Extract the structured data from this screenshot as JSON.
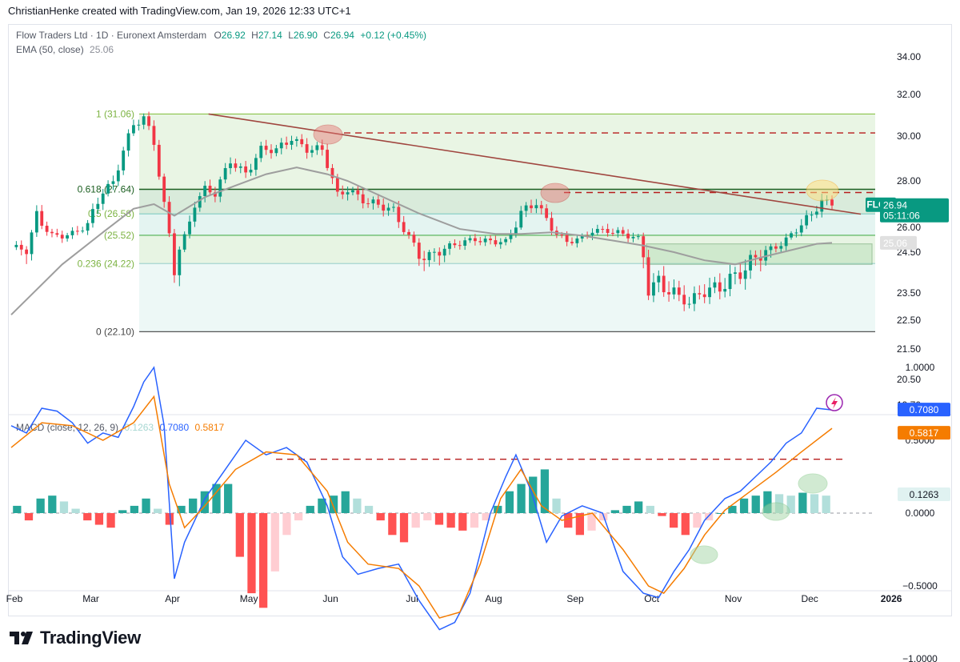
{
  "header": {
    "text": "ChristianHenke created with TradingView.com, Jan 19, 2026 12:33 UTC+1"
  },
  "legend": {
    "title": "Flow Traders Ltd · 1D · Euronext Amsterdam",
    "o_label": "O",
    "o": "26.92",
    "h_label": "H",
    "h": "27.14",
    "l_label": "L",
    "l": "26.90",
    "c_label": "C",
    "c": "26.94",
    "change": "+0.12 (+0.45%)",
    "ema_label": "EMA (50, close)",
    "ema_value": "25.06",
    "macd_label": "MACD (close, 12, 26, 9)",
    "macd_hist": "0.1263",
    "macd_line": "0.7080",
    "macd_signal": "0.5817"
  },
  "badges": {
    "symbol": "FLOW",
    "price": "26.94",
    "countdown": "05:11:06",
    "ema": "25.06",
    "macd_line": "0.7080",
    "macd_signal": "0.5817",
    "macd_hist": "0.1263"
  },
  "footer": {
    "brand": "TradingView"
  },
  "colors": {
    "up": "#089981",
    "down": "#f23645",
    "ema": "#9e9e9e",
    "macd": "#2962ff",
    "signal": "#f57c00",
    "trend": "#a0463f"
  },
  "chart_data": [
    {
      "type": "candlestick",
      "title": "Flow Traders Ltd · 1D · Euronext Amsterdam",
      "y_ticks": [
        34.0,
        32.0,
        30.0,
        28.0,
        26.0,
        24.5,
        23.5,
        22.5,
        21.5,
        20.5,
        19.7
      ],
      "y_tick_labels": [
        "34.00",
        "32.00",
        "30.00",
        "28.00",
        "26.00",
        "24.50",
        "23.50",
        "22.50",
        "21.50",
        "20.50",
        "19.70"
      ],
      "x_ticks": [
        "Feb",
        "Mar",
        "Apr",
        "May",
        "Jun",
        "Jul",
        "Aug",
        "Sep",
        "Oct",
        "Nov",
        "Dec",
        "2026",
        "Feb"
      ],
      "close_path": [
        [
          0,
          24.8
        ],
        [
          3,
          24.5
        ],
        [
          5,
          26.5
        ],
        [
          8,
          25.6
        ],
        [
          12,
          25.6
        ],
        [
          15,
          26.0
        ],
        [
          18,
          27.6
        ],
        [
          20,
          28.0
        ],
        [
          22,
          29.5
        ],
        [
          24,
          30.5
        ],
        [
          26,
          30.8
        ],
        [
          28,
          29.6
        ],
        [
          30,
          27.0
        ],
        [
          32,
          24.2
        ],
        [
          34,
          25.5
        ],
        [
          36,
          27.0
        ],
        [
          38,
          27.5
        ],
        [
          40,
          27.4
        ],
        [
          43,
          29.0
        ],
        [
          46,
          28.4
        ],
        [
          49,
          29.3
        ],
        [
          52,
          29.3
        ],
        [
          55,
          30.0
        ],
        [
          58,
          29.5
        ],
        [
          61,
          29.3
        ],
        [
          64,
          27.3
        ],
        [
          66,
          27.7
        ],
        [
          69,
          27.3
        ],
        [
          72,
          26.9
        ],
        [
          75,
          26.6
        ],
        [
          78,
          25.5
        ],
        [
          80,
          24.6
        ],
        [
          82,
          24.4
        ],
        [
          85,
          24.6
        ],
        [
          88,
          25.0
        ],
        [
          91,
          25.4
        ],
        [
          94,
          25.2
        ],
        [
          97,
          25.0
        ],
        [
          100,
          26.6
        ],
        [
          103,
          27.2
        ],
        [
          105,
          26.4
        ],
        [
          107,
          25.6
        ],
        [
          109,
          25.0
        ],
        [
          112,
          25.3
        ],
        [
          114,
          25.9
        ],
        [
          117,
          25.9
        ],
        [
          120,
          25.5
        ],
        [
          123,
          25.2
        ],
        [
          125,
          23.6
        ],
        [
          127,
          23.9
        ],
        [
          130,
          23.5
        ],
        [
          133,
          23.0
        ],
        [
          135,
          23.4
        ],
        [
          138,
          23.7
        ],
        [
          141,
          23.9
        ],
        [
          144,
          24.0
        ],
        [
          147,
          24.4
        ],
        [
          150,
          24.9
        ],
        [
          153,
          25.6
        ],
        [
          155,
          26.1
        ],
        [
          157,
          26.4
        ],
        [
          159,
          27.1
        ],
        [
          161,
          26.94
        ]
      ],
      "ema_50_path": [
        [
          0,
          22.7
        ],
        [
          10,
          24.2
        ],
        [
          18,
          25.7
        ],
        [
          24,
          26.8
        ],
        [
          28,
          27.0
        ],
        [
          32,
          26.5
        ],
        [
          38,
          27.3
        ],
        [
          44,
          27.8
        ],
        [
          50,
          28.3
        ],
        [
          56,
          28.6
        ],
        [
          62,
          28.3
        ],
        [
          66,
          28.0
        ],
        [
          72,
          27.4
        ],
        [
          80,
          26.6
        ],
        [
          88,
          25.9
        ],
        [
          95,
          25.6
        ],
        [
          100,
          25.6
        ],
        [
          106,
          25.7
        ],
        [
          112,
          25.5
        ],
        [
          118,
          25.2
        ],
        [
          124,
          24.9
        ],
        [
          130,
          24.5
        ],
        [
          136,
          24.3
        ],
        [
          142,
          24.2
        ],
        [
          148,
          24.4
        ],
        [
          154,
          24.7
        ],
        [
          158,
          25.0
        ],
        [
          161,
          25.06
        ]
      ],
      "fibonacci": [
        {
          "level": "1",
          "price": 31.06,
          "label": "1 (31.06)"
        },
        {
          "level": "0.618",
          "price": 27.64,
          "label": "0.618 (27.64)"
        },
        {
          "level": "0.5",
          "price": 26.58,
          "label": "0.5 (26.58)"
        },
        {
          "level": "0.382",
          "price": 25.52,
          "label": "(25.52)"
        },
        {
          "level": "0.236",
          "price": 24.22,
          "label": "0.236 (24.22)"
        },
        {
          "level": "0",
          "price": 22.1,
          "label": "0 (22.10)"
        }
      ],
      "resistance_lines": [
        30.15,
        27.5
      ],
      "support_zone": [
        24.2,
        25.0
      ],
      "trendline": [
        [
          34,
          31.06
        ],
        [
          161,
          26.5
        ]
      ],
      "last_price": 26.94,
      "ema_value": 25.06
    },
    {
      "type": "line",
      "title": "MACD (close, 12, 26, 9)",
      "y_ticks": [
        1.0,
        0.5,
        0.0,
        -0.5,
        -1.0
      ],
      "y_tick_labels": [
        "1.0000",
        "0.5000",
        "0.0000",
        "−0.5000",
        "−1.0000"
      ],
      "macd_path": [
        [
          0,
          0.6
        ],
        [
          3,
          0.55
        ],
        [
          6,
          0.72
        ],
        [
          9,
          0.7
        ],
        [
          12,
          0.62
        ],
        [
          15,
          0.48
        ],
        [
          18,
          0.55
        ],
        [
          21,
          0.52
        ],
        [
          24,
          0.73
        ],
        [
          26,
          0.9
        ],
        [
          28,
          1.0
        ],
        [
          30,
          0.6
        ],
        [
          32,
          -0.45
        ],
        [
          34,
          -0.2
        ],
        [
          38,
          0.1
        ],
        [
          42,
          0.3
        ],
        [
          46,
          0.5
        ],
        [
          50,
          0.4
        ],
        [
          54,
          0.45
        ],
        [
          58,
          0.35
        ],
        [
          62,
          0.05
        ],
        [
          65,
          -0.3
        ],
        [
          68,
          -0.42
        ],
        [
          72,
          -0.38
        ],
        [
          76,
          -0.35
        ],
        [
          80,
          -0.6
        ],
        [
          84,
          -0.8
        ],
        [
          87,
          -0.75
        ],
        [
          90,
          -0.55
        ],
        [
          94,
          0.0
        ],
        [
          97,
          0.25
        ],
        [
          99,
          0.4
        ],
        [
          102,
          0.15
        ],
        [
          105,
          -0.2
        ],
        [
          108,
          -0.02
        ],
        [
          112,
          0.05
        ],
        [
          116,
          0.0
        ],
        [
          120,
          -0.4
        ],
        [
          124,
          -0.55
        ],
        [
          127,
          -0.58
        ],
        [
          130,
          -0.4
        ],
        [
          133,
          -0.25
        ],
        [
          136,
          -0.05
        ],
        [
          140,
          0.1
        ],
        [
          143,
          0.15
        ],
        [
          146,
          0.25
        ],
        [
          149,
          0.35
        ],
        [
          152,
          0.48
        ],
        [
          155,
          0.55
        ],
        [
          158,
          0.72
        ],
        [
          161,
          0.708
        ]
      ],
      "signal_path": [
        [
          0,
          0.45
        ],
        [
          6,
          0.62
        ],
        [
          12,
          0.6
        ],
        [
          18,
          0.5
        ],
        [
          24,
          0.62
        ],
        [
          28,
          0.8
        ],
        [
          31,
          0.2
        ],
        [
          34,
          -0.1
        ],
        [
          38,
          0.05
        ],
        [
          44,
          0.3
        ],
        [
          50,
          0.42
        ],
        [
          56,
          0.4
        ],
        [
          62,
          0.15
        ],
        [
          66,
          -0.2
        ],
        [
          70,
          -0.35
        ],
        [
          76,
          -0.38
        ],
        [
          80,
          -0.5
        ],
        [
          84,
          -0.72
        ],
        [
          88,
          -0.68
        ],
        [
          92,
          -0.35
        ],
        [
          96,
          0.1
        ],
        [
          100,
          0.3
        ],
        [
          104,
          0.05
        ],
        [
          108,
          -0.05
        ],
        [
          114,
          0.0
        ],
        [
          120,
          -0.25
        ],
        [
          125,
          -0.5
        ],
        [
          128,
          -0.55
        ],
        [
          132,
          -0.38
        ],
        [
          136,
          -0.15
        ],
        [
          140,
          0.02
        ],
        [
          145,
          0.15
        ],
        [
          150,
          0.28
        ],
        [
          155,
          0.42
        ],
        [
          161,
          0.5817
        ]
      ],
      "histogram": [
        0.05,
        -0.05,
        0.1,
        0.12,
        0.08,
        0.03,
        -0.05,
        -0.08,
        -0.1,
        0.02,
        0.05,
        0.1,
        0.03,
        -0.08,
        0.05,
        0.1,
        0.15,
        0.2,
        0.2,
        -0.3,
        -0.55,
        -0.65,
        -0.4,
        -0.15,
        -0.05,
        0.05,
        0.1,
        0.12,
        0.15,
        0.1,
        0.05,
        -0.05,
        -0.15,
        -0.2,
        -0.1,
        -0.05,
        -0.08,
        -0.1,
        -0.12,
        -0.1,
        -0.05,
        0.05,
        0.15,
        0.2,
        0.25,
        0.3,
        0.1,
        -0.1,
        -0.15,
        -0.12,
        -0.05,
        0.02,
        0.05,
        0.08,
        0.05,
        -0.02,
        -0.1,
        -0.15,
        -0.1,
        -0.05,
        0.0,
        0.05,
        0.1,
        0.12,
        0.15,
        0.13,
        0.12,
        0.14,
        0.13,
        0.12
      ],
      "resistance": 0.37,
      "zero_line": 0.0
    }
  ]
}
